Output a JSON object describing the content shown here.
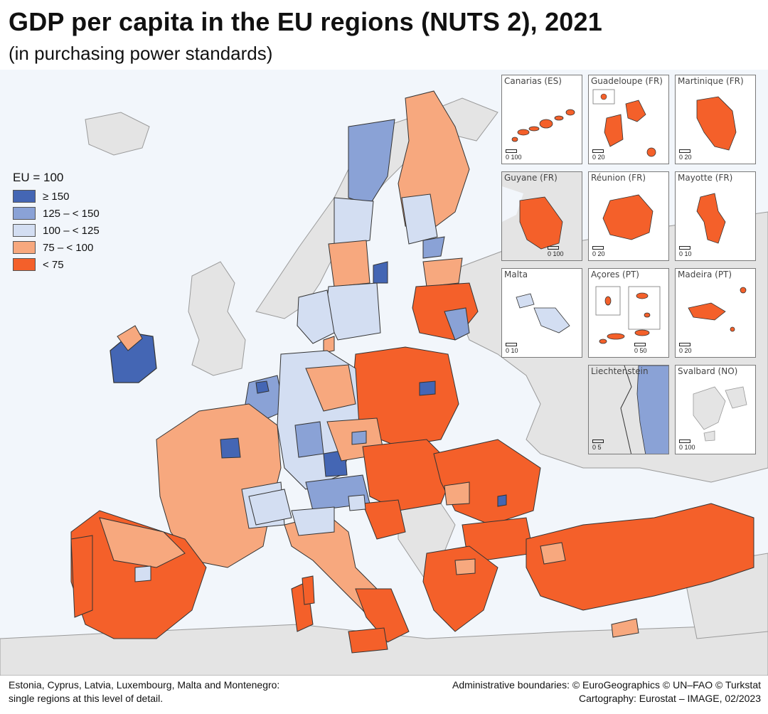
{
  "title": "GDP per capita in the EU regions (NUTS 2), 2021",
  "subtitle": "(in purchasing power standards)",
  "legend": {
    "title": "EU = 100",
    "classes": [
      {
        "label": "≥ 150",
        "color": "#4466b4"
      },
      {
        "label": "125 – < 150",
        "color": "#8aa2d6"
      },
      {
        "label": "100 – < 125",
        "color": "#d3def2"
      },
      {
        "label": "75 – < 100",
        "color": "#f7a87e"
      },
      {
        "label": "< 75",
        "color": "#f4602a"
      }
    ]
  },
  "colors": {
    "sea": "#f2f6fb",
    "non_eu_land": "#e4e4e4",
    "border": "#333333"
  },
  "insets": [
    {
      "label": "Canarias (ES)",
      "scale": "0   100",
      "class": "< 75"
    },
    {
      "label": "Guadeloupe (FR)",
      "scale": "0   20",
      "class": "< 75"
    },
    {
      "label": "Martinique (FR)",
      "scale": "0   20",
      "class": "< 75"
    },
    {
      "label": "Guyane (FR)",
      "scale": "0   100",
      "class": "< 75"
    },
    {
      "label": "Réunion (FR)",
      "scale": "0   20",
      "class": "< 75"
    },
    {
      "label": "Mayotte (FR)",
      "scale": "0   10",
      "class": "< 75"
    },
    {
      "label": "Malta",
      "scale": "0   10",
      "class": "100 – < 125"
    },
    {
      "label": "Açores (PT)",
      "scale": "0   50",
      "class": "< 75"
    },
    {
      "label": "Madeira (PT)",
      "scale": "0   20",
      "class": "< 75"
    },
    {
      "label": "Liechtenstein",
      "scale": "0   5",
      "class": "125 – < 150"
    },
    {
      "label": "Svalbard (NO)",
      "scale": "0   100",
      "class": "non-EU"
    }
  ],
  "footnote_left": [
    "Estonia, Cyprus, Latvia, Luxembourg, Malta and Montenegro:",
    "single regions at this level of detail."
  ],
  "footnote_right": [
    "Administrative boundaries: © EuroGeographics © UN–FAO © Turkstat",
    "Cartography: Eurostat – IMAGE, 02/2023"
  ]
}
